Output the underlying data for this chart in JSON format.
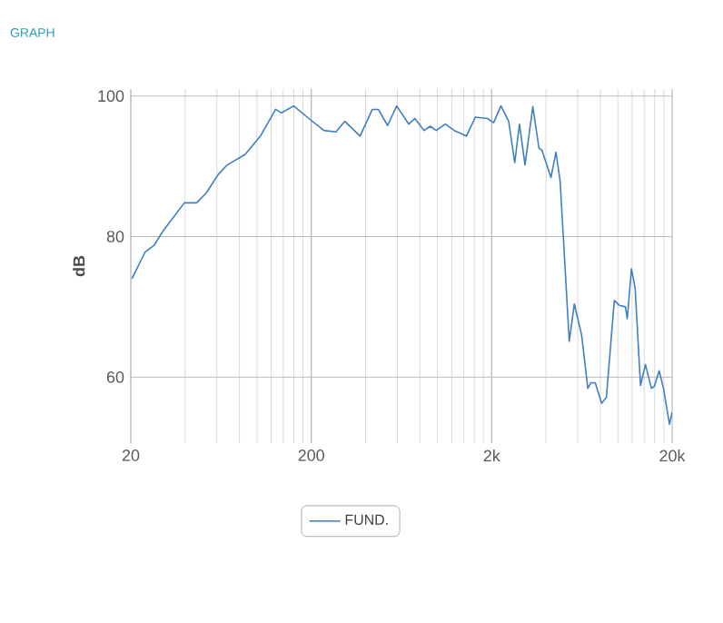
{
  "chart_data": {
    "type": "line",
    "title": "GRAPH",
    "ylabel": "dB",
    "log": "x",
    "grid": true,
    "legend": "bottom",
    "xlim": [
      20,
      20000
    ],
    "ylim": [
      50.6,
      101
    ],
    "xticks": [
      {
        "value": 20,
        "label": "20"
      },
      {
        "value": 200,
        "label": "200"
      },
      {
        "value": 2000,
        "label": "2k"
      },
      {
        "value": 20000,
        "label": "20k"
      }
    ],
    "yticks": [
      60,
      80,
      100
    ],
    "x": [
      20.3,
      24,
      27,
      30.2,
      39.6,
      46.3,
      52.4,
      60.9,
      68.5,
      86.1,
      104.5,
      127,
      136.8,
      160,
      194,
      235,
      274,
      307,
      373,
      436,
      471,
      530,
      595,
      695,
      750,
      845,
      913,
      986,
      1106,
      1241,
      1448,
      1625,
      1895,
      2050,
      2250,
      2485,
      2684,
      2850,
      3060,
      3380,
      3655,
      3795,
      4260,
      4540,
      4790,
      5380,
      5740,
      6300,
      6820,
      7100,
      7500,
      8130,
      8640,
      9560,
      10220,
      11020,
      11280,
      11900,
      12470,
      13360,
      14220,
      15360,
      15950,
      16950,
      17900,
      19330,
      20000
    ],
    "series": [
      {
        "name": "FUND.",
        "color": "#3d7fc0",
        "values": [
          74.0,
          77.8,
          78.8,
          80.8,
          84.8,
          84.8,
          86.2,
          88.8,
          90.2,
          91.7,
          94.3,
          98.1,
          97.6,
          98.6,
          96.8,
          95.1,
          94.9,
          96.4,
          94.3,
          98.1,
          98.1,
          95.8,
          98.6,
          96.0,
          96.8,
          95.1,
          95.7,
          95.1,
          96.0,
          95.1,
          94.3,
          97.0,
          96.8,
          96.2,
          98.6,
          96.4,
          90.5,
          96.0,
          90.2,
          98.5,
          92.6,
          92.3,
          88.4,
          92.0,
          87.9,
          65.1,
          70.4,
          66.0,
          58.4,
          59.2,
          59.2,
          56.3,
          57.1,
          70.9,
          70.2,
          70.0,
          68.3,
          75.4,
          72.7,
          58.8,
          61.8,
          58.4,
          58.7,
          60.9,
          58.4,
          53.3,
          55.0
        ]
      }
    ]
  }
}
